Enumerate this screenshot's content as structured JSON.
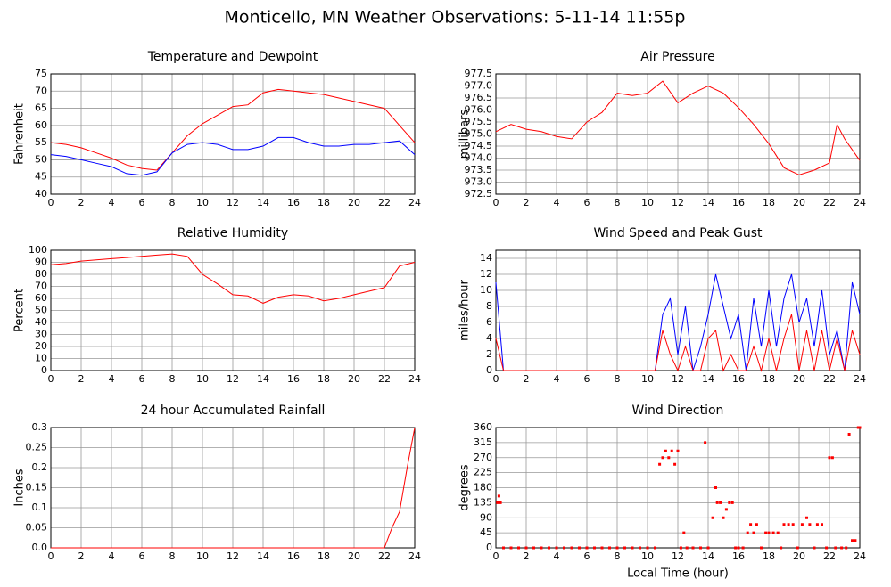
{
  "title": "Monticello, MN Weather Observations: 5-11-14 11:55p",
  "chart_data": [
    {
      "type": "line",
      "title": "Temperature and Dewpoint",
      "ylabel": "Fahrenheit",
      "x": [
        0,
        1,
        2,
        3,
        4,
        5,
        6,
        7,
        8,
        9,
        10,
        11,
        12,
        13,
        14,
        15,
        16,
        17,
        18,
        19,
        20,
        21,
        22,
        23,
        24
      ],
      "series": [
        {
          "color": "#ff0000",
          "values": [
            55,
            54.5,
            53.5,
            52,
            50.5,
            48.5,
            47.5,
            47,
            52,
            57,
            60.5,
            63,
            65.5,
            66,
            69.5,
            70.5,
            70,
            69.5,
            69,
            68,
            67,
            66,
            65,
            60,
            55
          ]
        },
        {
          "color": "#0000ff",
          "values": [
            51.5,
            51,
            50,
            49,
            48,
            46,
            45.5,
            46.5,
            52,
            54.5,
            55,
            54.5,
            53,
            53,
            54,
            56.5,
            56.5,
            55,
            54,
            54,
            54.5,
            54.5,
            55,
            55.5,
            51.5
          ]
        }
      ],
      "xlim": [
        0,
        24
      ],
      "xticks": [
        0,
        2,
        4,
        6,
        8,
        10,
        12,
        14,
        16,
        18,
        20,
        22,
        24
      ],
      "ylim": [
        40,
        75
      ],
      "yticks": [
        40,
        45,
        50,
        55,
        60,
        65,
        70,
        75
      ],
      "grid": true
    },
    {
      "type": "line",
      "title": "Air Pressure",
      "ylabel": "millibars",
      "x": [
        0,
        1,
        2,
        3,
        4,
        5,
        6,
        7,
        8,
        9,
        10,
        11,
        12,
        13,
        14,
        15,
        16,
        17,
        18,
        19,
        20,
        21,
        22,
        22.5,
        23,
        24
      ],
      "series": [
        {
          "color": "#ff0000",
          "values": [
            975.1,
            975.4,
            975.2,
            975.1,
            974.9,
            974.8,
            975.5,
            975.9,
            976.7,
            976.6,
            976.7,
            977.2,
            976.3,
            976.7,
            977.0,
            976.7,
            976.1,
            975.4,
            974.6,
            973.6,
            973.3,
            973.5,
            973.8,
            975.4,
            974.8,
            973.9
          ]
        }
      ],
      "xlim": [
        0,
        24
      ],
      "xticks": [
        0,
        2,
        4,
        6,
        8,
        10,
        12,
        14,
        16,
        18,
        20,
        22,
        24
      ],
      "ylim": [
        972.5,
        977.5
      ],
      "yticks": [
        972.5,
        {
          "value": 973,
          "label": "973.0"
        },
        973.5,
        {
          "value": 974,
          "label": "974.0"
        },
        974.5,
        {
          "value": 975,
          "label": "975.0"
        },
        975.5,
        {
          "value": 976,
          "label": "976.0"
        },
        976.5,
        {
          "value": 977,
          "label": "977.0"
        },
        977.5
      ],
      "grid": true
    },
    {
      "type": "line",
      "title": "Relative Humidity",
      "ylabel": "Percent",
      "x": [
        0,
        1,
        2,
        3,
        4,
        5,
        6,
        7,
        8,
        9,
        10,
        11,
        12,
        13,
        14,
        15,
        16,
        17,
        18,
        19,
        20,
        21,
        22,
        23,
        24
      ],
      "series": [
        {
          "color": "#ff0000",
          "values": [
            88,
            89,
            91,
            92,
            93,
            94,
            95,
            96,
            97,
            95,
            80,
            72,
            63,
            62,
            56,
            61,
            63,
            62,
            58,
            60,
            63,
            66,
            69,
            87,
            90
          ]
        }
      ],
      "xlim": [
        0,
        24
      ],
      "xticks": [
        0,
        2,
        4,
        6,
        8,
        10,
        12,
        14,
        16,
        18,
        20,
        22,
        24
      ],
      "ylim": [
        0,
        100
      ],
      "yticks": [
        0,
        10,
        20,
        30,
        40,
        50,
        60,
        70,
        80,
        90,
        100
      ],
      "grid": true
    },
    {
      "type": "line",
      "title": "Wind Speed and Peak Gust",
      "ylabel": "miles/hour",
      "x": [
        0,
        0.5,
        1,
        1.5,
        2,
        2.5,
        3,
        3.5,
        4,
        4.5,
        5,
        5.5,
        6,
        6.5,
        7,
        7.5,
        8,
        8.5,
        9,
        9.5,
        10,
        10.5,
        11,
        11.5,
        12,
        12.5,
        13,
        13.5,
        14,
        14.5,
        15,
        15.5,
        16,
        16.5,
        17,
        17.5,
        18,
        18.5,
        19,
        19.5,
        20,
        20.5,
        21,
        21.5,
        22,
        22.5,
        23,
        23.5,
        24
      ],
      "series": [
        {
          "color": "#0000ff",
          "values": [
            11,
            0,
            0,
            0,
            0,
            0,
            0,
            0,
            0,
            0,
            0,
            0,
            0,
            0,
            0,
            0,
            0,
            0,
            0,
            0,
            0,
            0,
            7,
            9,
            2,
            8,
            0,
            3,
            7,
            12,
            8,
            4,
            7,
            0,
            9,
            3,
            10,
            3,
            9,
            12,
            6,
            9,
            3,
            10,
            2,
            5,
            0,
            11,
            7
          ]
        },
        {
          "color": "#ff0000",
          "values": [
            4,
            0,
            0,
            0,
            0,
            0,
            0,
            0,
            0,
            0,
            0,
            0,
            0,
            0,
            0,
            0,
            0,
            0,
            0,
            0,
            0,
            0,
            5,
            2,
            0,
            3,
            0,
            0,
            4,
            5,
            0,
            2,
            0,
            0,
            3,
            0,
            4,
            0,
            4,
            7,
            0,
            5,
            0,
            5,
            0,
            4,
            0,
            5,
            2
          ]
        }
      ],
      "xlim": [
        0,
        24
      ],
      "xticks": [
        0,
        2,
        4,
        6,
        8,
        10,
        12,
        14,
        16,
        18,
        20,
        22,
        24
      ],
      "ylim": [
        0,
        15
      ],
      "yticks": [
        0,
        2,
        4,
        6,
        8,
        10,
        12,
        14
      ],
      "grid": true
    },
    {
      "type": "line",
      "title": "24 hour Accumulated Rainfall",
      "ylabel": "Inches",
      "x": [
        0,
        22,
        22.5,
        23,
        23.5,
        24
      ],
      "series": [
        {
          "color": "#ff0000",
          "values": [
            0,
            0,
            0.05,
            0.09,
            0.2,
            0.3
          ]
        }
      ],
      "xlim": [
        0,
        24
      ],
      "xticks": [
        0,
        2,
        4,
        6,
        8,
        10,
        12,
        14,
        16,
        18,
        20,
        22,
        24
      ],
      "ylim": [
        0,
        0.3
      ],
      "yticks": [
        {
          "value": 0,
          "label": "0.0"
        },
        0.05,
        0.1,
        0.15,
        0.2,
        0.25,
        0.3
      ],
      "grid": true
    },
    {
      "type": "scatter",
      "title": "Wind Direction",
      "ylabel": "degrees",
      "xlabel": "Local Time (hour)",
      "x": [
        0.1,
        0.2,
        0.3,
        0.5,
        1,
        1.5,
        2,
        2.5,
        3,
        3.5,
        4,
        4.5,
        5,
        5.5,
        6,
        6.5,
        7,
        7.5,
        8,
        8.5,
        9,
        9.5,
        10,
        10.5,
        10.8,
        11,
        11.2,
        11.4,
        11.6,
        11.8,
        12,
        12.2,
        12.4,
        12.6,
        13,
        13.5,
        13.8,
        14,
        14.3,
        14.5,
        14.6,
        14.8,
        15,
        15.2,
        15.4,
        15.6,
        15.8,
        16,
        16.3,
        16.6,
        16.8,
        17,
        17.2,
        17.5,
        17.8,
        18,
        18.3,
        18.6,
        18.8,
        19,
        19.3,
        19.6,
        19.9,
        20.2,
        20.5,
        20.7,
        21,
        21.2,
        21.5,
        21.8,
        22,
        22.2,
        22.4,
        22.8,
        23.1,
        23.3,
        23.5,
        23.7,
        23.9,
        24
      ],
      "series": [
        {
          "color": "#ff0000",
          "values": [
            135,
            155,
            135,
            0,
            0,
            0,
            0,
            0,
            0,
            0,
            0,
            0,
            0,
            0,
            0,
            0,
            0,
            0,
            0,
            0,
            0,
            0,
            0,
            0,
            250,
            270,
            290,
            270,
            290,
            250,
            290,
            0,
            45,
            0,
            0,
            0,
            315,
            0,
            90,
            180,
            135,
            135,
            90,
            115,
            135,
            135,
            0,
            0,
            0,
            45,
            70,
            45,
            70,
            0,
            45,
            45,
            45,
            45,
            0,
            70,
            70,
            70,
            0,
            70,
            90,
            70,
            0,
            70,
            70,
            0,
            270,
            270,
            0,
            0,
            0,
            340,
            22,
            22,
            360,
            360
          ]
        }
      ],
      "xlim": [
        0,
        24
      ],
      "xticks": [
        0,
        2,
        4,
        6,
        8,
        10,
        12,
        14,
        16,
        18,
        20,
        22,
        24
      ],
      "ylim": [
        0,
        360
      ],
      "yticks": [
        0,
        45,
        90,
        135,
        180,
        225,
        270,
        315,
        360
      ],
      "grid": true
    }
  ]
}
